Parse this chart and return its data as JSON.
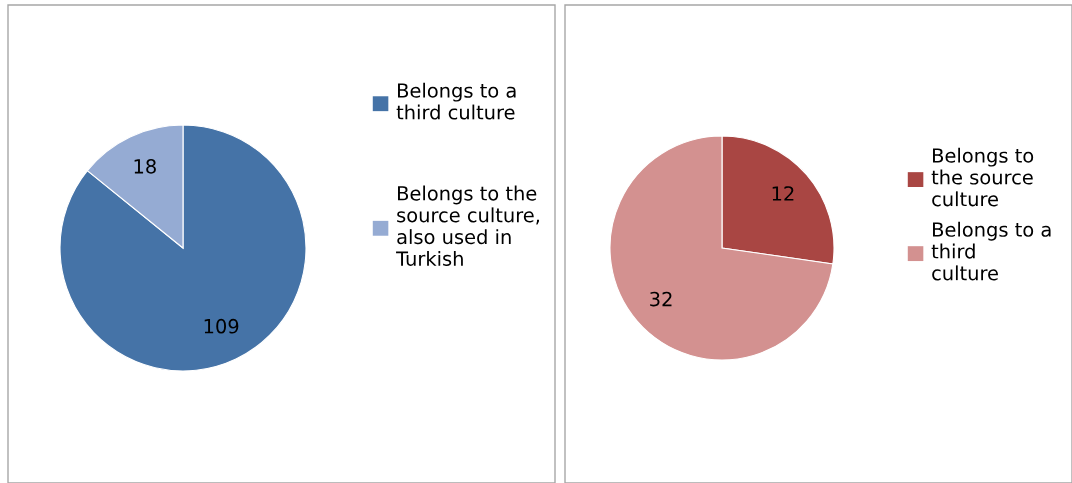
{
  "chart_data": [
    {
      "type": "pie",
      "categories": [
        "Belongs to a third culture",
        "Belongs to the source culture, also used in Turkish"
      ],
      "values": [
        109,
        18
      ],
      "colors": [
        "#4573a7",
        "#95abd3"
      ],
      "data_labels": true,
      "legend": "right"
    },
    {
      "type": "pie",
      "categories": [
        "Belongs to the source culture",
        "Belongs to a third culture"
      ],
      "values": [
        12,
        32
      ],
      "colors": [
        "#a94643",
        "#d39190"
      ],
      "data_labels": true,
      "legend": "right"
    }
  ]
}
